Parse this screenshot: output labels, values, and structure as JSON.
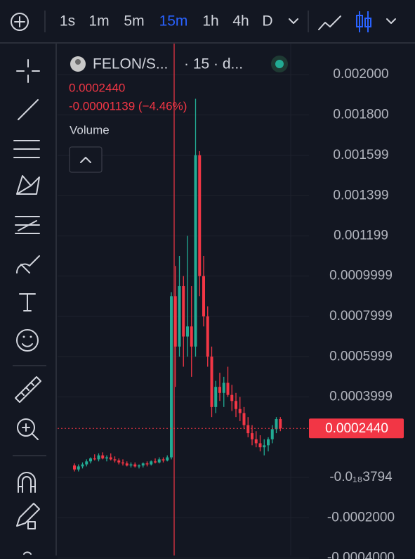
{
  "toolbar": {
    "timeframes": [
      "1s",
      "1m",
      "5m",
      "15m",
      "1h",
      "4h",
      "D"
    ],
    "active_timeframe": 3
  },
  "legend": {
    "symbol": "FELON/S...",
    "interval": "· 15 · d...",
    "price": "0.0002440",
    "change": "-0.00001139 (−4.46%)",
    "volume": "Volume"
  },
  "chart_data": {
    "type": "candlestick",
    "up_color": "#22ab94",
    "down_color": "#f23645",
    "grid": true,
    "ylim": [
      -0.000387,
      0.002154
    ],
    "yticks": [
      {
        "value": 0.002,
        "label": "0.002000"
      },
      {
        "value": 0.0018,
        "label": "0.001800"
      },
      {
        "value": 0.001599,
        "label": "0.001599"
      },
      {
        "value": 0.001399,
        "label": "0.001399"
      },
      {
        "value": 0.001199,
        "label": "0.001199"
      },
      {
        "value": 0.0009999,
        "label": "0.0009999"
      },
      {
        "value": 0.0007999,
        "label": "0.0007999"
      },
      {
        "value": 0.0005999,
        "label": "0.0005999"
      },
      {
        "value": 0.0003999,
        "label": "0.0003999"
      },
      {
        "value": -3.794e-22,
        "label": "-0.0₁₈3794"
      },
      {
        "value": -0.0002,
        "label": "-0.0002000"
      },
      {
        "value": -0.0004,
        "label": "-0.0004000"
      }
    ],
    "last_price": {
      "value": 0.000244,
      "label": "0.0002440"
    },
    "candles": [
      [
        6e-05,
        7e-05,
        3e-05,
        4e-05
      ],
      [
        4e-05,
        6.5e-05,
        3e-05,
        5.5e-05
      ],
      [
        5.5e-05,
        7.5e-05,
        4.5e-05,
        6.5e-05
      ],
      [
        6.5e-05,
        9e-05,
        5.5e-05,
        8e-05
      ],
      [
        8e-05,
        0.0001,
        7e-05,
        9.5e-05
      ],
      [
        9.5e-05,
        0.000115,
        8.5e-05,
        9e-05
      ],
      [
        9e-05,
        0.00012,
        8e-05,
        0.00011
      ],
      [
        0.00011,
        0.000125,
        9e-05,
        9.5e-05
      ],
      [
        9.5e-05,
        0.00011,
        8e-05,
        0.0001
      ],
      [
        0.0001,
        0.00012,
        8.5e-05,
        9e-05
      ],
      [
        9e-05,
        0.000105,
        7.5e-05,
        8.5e-05
      ],
      [
        8.5e-05,
        9.5e-05,
        6.5e-05,
        7.5e-05
      ],
      [
        7.5e-05,
        9e-05,
        6e-05,
        7e-05
      ],
      [
        7e-05,
        8e-05,
        5.5e-05,
        6e-05
      ],
      [
        6e-05,
        7.5e-05,
        5e-05,
        6.5e-05
      ],
      [
        6.5e-05,
        7.5e-05,
        5e-05,
        5.5e-05
      ],
      [
        5.5e-05,
        6.5e-05,
        4.5e-05,
        6e-05
      ],
      [
        6e-05,
        7.5e-05,
        5e-05,
        7e-05
      ],
      [
        7e-05,
        8e-05,
        5.5e-05,
        6.5e-05
      ],
      [
        6.5e-05,
        8.5e-05,
        6e-05,
        8e-05
      ],
      [
        8e-05,
        9.5e-05,
        7e-05,
        7.5e-05
      ],
      [
        7.5e-05,
        0.0001,
        7e-05,
        9e-05
      ],
      [
        9e-05,
        0.0001,
        7.5e-05,
        8.5e-05
      ],
      [
        8.5e-05,
        0.00011,
        8e-05,
        0.0001
      ],
      [
        0.0001,
        0.00092,
        9e-05,
        0.0009
      ],
      [
        0.0009,
        0.00105,
        0.00045,
        0.00065
      ],
      [
        0.00065,
        0.0011,
        0.0006,
        0.00095
      ],
      [
        0.00095,
        0.001,
        0.00055,
        0.0007
      ],
      [
        0.0007,
        0.0012,
        0.0006,
        0.00075
      ],
      [
        0.00075,
        0.00095,
        0.0005,
        0.00065
      ],
      [
        0.00065,
        0.00188,
        0.0006,
        0.0016
      ],
      [
        0.0016,
        0.00162,
        0.0009,
        0.001
      ],
      [
        0.001,
        0.0011,
        0.00075,
        0.0008
      ],
      [
        0.0008,
        0.00085,
        0.00055,
        0.0006
      ],
      [
        0.0006,
        0.00065,
        0.0003,
        0.00035
      ],
      [
        0.00035,
        0.00048,
        0.00032,
        0.00045
      ],
      [
        0.00045,
        0.00052,
        0.00038,
        0.00042
      ],
      [
        0.00042,
        0.0005,
        0.00035,
        0.00047
      ],
      [
        0.00047,
        0.00055,
        0.0004,
        0.00041
      ],
      [
        0.00041,
        0.00046,
        0.00033,
        0.00038
      ],
      [
        0.00038,
        0.00042,
        0.0003,
        0.00034
      ],
      [
        0.00034,
        0.0004,
        0.00028,
        0.00032
      ],
      [
        0.00032,
        0.00035,
        0.00024,
        0.00026
      ],
      [
        0.00026,
        0.0003,
        0.0002,
        0.00022
      ],
      [
        0.00022,
        0.00026,
        0.00016,
        0.00019
      ],
      [
        0.00019,
        0.00023,
        0.00015,
        0.00017
      ],
      [
        0.00017,
        0.00021,
        0.00013,
        0.00015
      ],
      [
        0.00015,
        0.00019,
        0.00011,
        0.00016
      ],
      [
        0.00016,
        0.0002,
        0.00013,
        0.00019
      ],
      [
        0.00019,
        0.00026,
        0.00017,
        0.00024
      ],
      [
        0.00024,
        0.0003,
        0.00022,
        0.00029
      ],
      [
        0.00029,
        0.0003,
        0.00023,
        0.000244
      ]
    ]
  }
}
